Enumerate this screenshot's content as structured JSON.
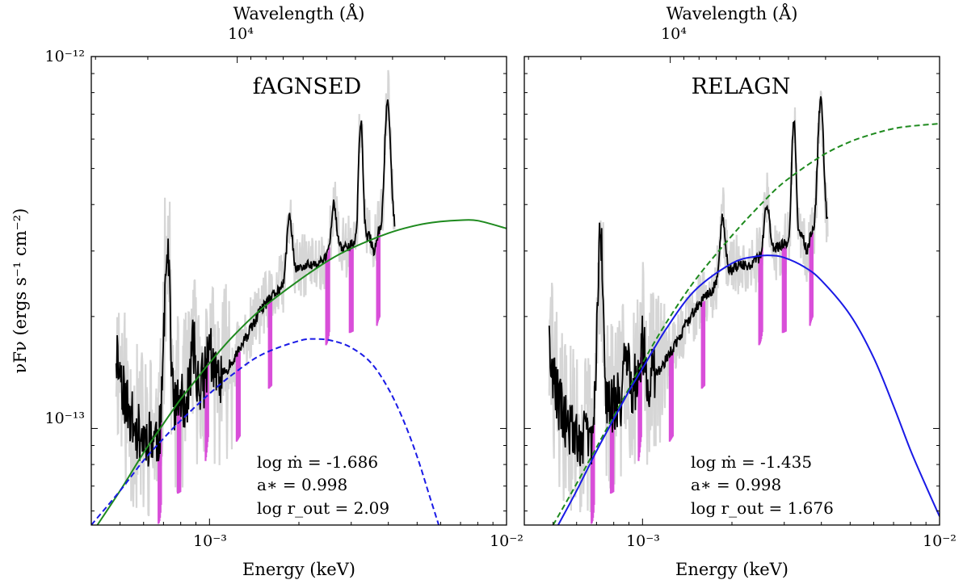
{
  "figure": {
    "ylabel": "νFν (ergs s⁻¹ cm⁻²)",
    "xlabel": "Energy (keV)",
    "top_xlabel": "Wavelength (Å)",
    "top_tick": "10⁴",
    "ytick_top": "10⁻¹²",
    "ytick_mid": "10⁻¹³",
    "xtick_1": "10⁻³",
    "xtick_2": "10⁻²"
  },
  "colors": {
    "data_grey": "#d6d6d6",
    "data_black": "#000000",
    "data_magenta": "#d94fd9",
    "green": "#1e8a1e",
    "blue": "#1a1ae6"
  },
  "chart_data": [
    {
      "type": "line",
      "title": "fAGNSED",
      "xlabel": "Energy (keV)",
      "ylabel": "νFν (ergs s⁻¹ cm⁻²)",
      "x_scale": "log",
      "y_scale": "log",
      "xlim": [
        0.0004,
        0.01
      ],
      "ylim": [
        5.5e-14,
        1e-12
      ],
      "annotations": [
        "log ṁ = -1.686",
        "a∗ = 0.998",
        "log r_out = 2.09"
      ],
      "series": [
        {
          "style": "solid",
          "color": "green",
          "x": [
            0.0004,
            0.0005,
            0.0006,
            0.0007,
            0.0008,
            0.0009,
            0.001,
            0.0012,
            0.0015,
            0.002,
            0.0025,
            0.003,
            0.004,
            0.005,
            0.006,
            0.007,
            0.008,
            0.01
          ],
          "y": [
            5.2e-14,
            6.8e-14,
            8.6e-14,
            1.03e-13,
            1.2e-13,
            1.35e-13,
            1.5e-13,
            1.77e-13,
            2.1e-13,
            2.5e-13,
            2.82e-13,
            3.05e-13,
            3.35e-13,
            3.52e-13,
            3.6e-13,
            3.63e-13,
            3.62e-13,
            3.45e-13
          ]
        },
        {
          "style": "dashed",
          "color": "blue",
          "x": [
            0.0004,
            0.0005,
            0.0006,
            0.0007,
            0.0008,
            0.001,
            0.0012,
            0.0015,
            0.002,
            0.0023,
            0.0026,
            0.003,
            0.0035,
            0.004,
            0.0045,
            0.005,
            0.0055,
            0.006
          ],
          "y": [
            5.5e-14,
            6.8e-14,
            8.2e-14,
            9.4e-14,
            1.05e-13,
            1.24e-13,
            1.4e-13,
            1.58e-13,
            1.72e-13,
            1.74e-13,
            1.72e-13,
            1.65e-13,
            1.5e-13,
            1.28e-13,
            1.05e-13,
            8.4e-14,
            6.6e-14,
            5.3e-14
          ]
        }
      ]
    },
    {
      "type": "line",
      "title": "RELAGN",
      "xlabel": "Energy (keV)",
      "ylabel": "νFν (ergs s⁻¹ cm⁻²)",
      "x_scale": "log",
      "y_scale": "log",
      "xlim": [
        0.0004,
        0.01
      ],
      "ylim": [
        5.5e-14,
        1e-12
      ],
      "annotations": [
        "log ṁ = -1.435",
        "a∗ = 0.998",
        "log r_out = 1.676"
      ],
      "series": [
        {
          "style": "dashed",
          "color": "green",
          "x": [
            0.0005,
            0.0006,
            0.0007,
            0.0008,
            0.0009,
            0.001,
            0.0012,
            0.0015,
            0.002,
            0.0025,
            0.003,
            0.004,
            0.005,
            0.006,
            0.007,
            0.008,
            0.01
          ],
          "y": [
            5.5e-14,
            7.1e-14,
            8.9e-14,
            1.08e-13,
            1.28e-13,
            1.5e-13,
            1.92e-13,
            2.5e-13,
            3.3e-13,
            4e-13,
            4.6e-13,
            5.4e-13,
            5.9e-13,
            6.2e-13,
            6.4e-13,
            6.5e-13,
            6.6e-13
          ]
        },
        {
          "style": "solid",
          "color": "blue",
          "x": [
            0.00052,
            0.0006,
            0.0007,
            0.0008,
            0.0009,
            0.001,
            0.0012,
            0.0015,
            0.002,
            0.0024,
            0.0027,
            0.003,
            0.0035,
            0.004,
            0.005,
            0.006,
            0.007,
            0.008,
            0.009,
            0.01
          ],
          "y": [
            5.5e-14,
            6.8e-14,
            8.7e-14,
            1.06e-13,
            1.26e-13,
            1.45e-13,
            1.85e-13,
            2.35e-13,
            2.78e-13,
            2.9e-13,
            2.92e-13,
            2.88e-13,
            2.72e-13,
            2.5e-13,
            2.02e-13,
            1.55e-13,
            1.15e-13,
            8.7e-14,
            7e-14,
            5.8e-14
          ]
        }
      ]
    }
  ]
}
